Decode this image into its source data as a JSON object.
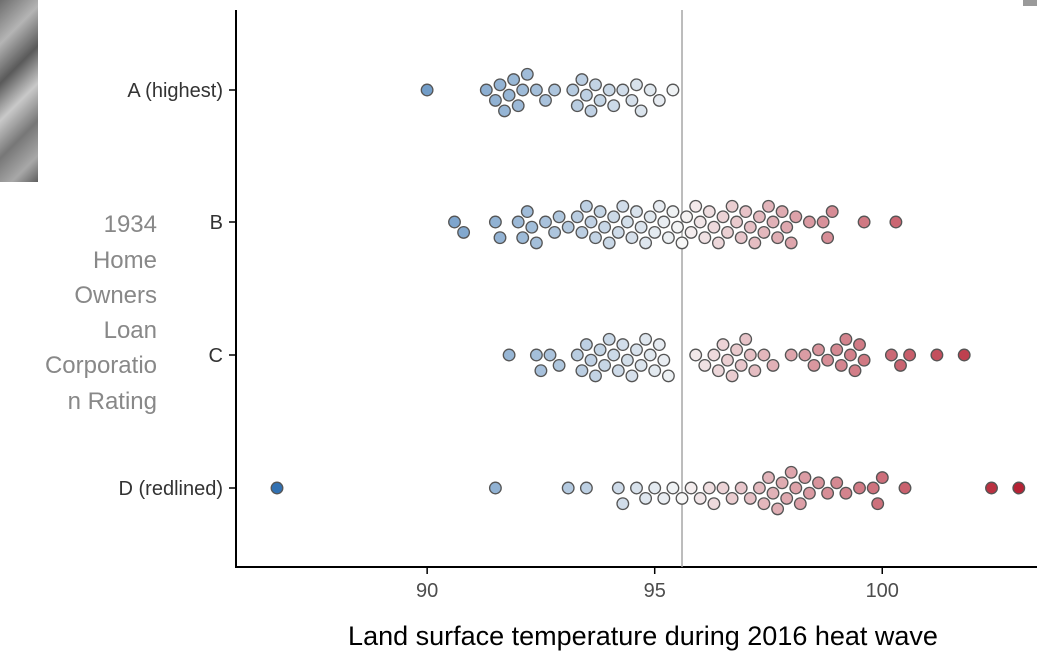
{
  "chart_data": {
    "type": "scatter",
    "subtype": "beeswarm",
    "title": "",
    "xlabel": "Land surface temperature during 2016 heat wave",
    "ylabel_lines": [
      "1934",
      "Home",
      "Owners",
      "Loan",
      "Corporatio",
      "n Rating"
    ],
    "xlim": [
      85.8,
      103.4
    ],
    "xticks": [
      90,
      95,
      100
    ],
    "reference_line_x": 95.6,
    "categories": [
      "A (highest)",
      "B",
      "C",
      "D (redlined)"
    ],
    "color_scale": {
      "low": "#2166ac",
      "mid": "#f7f7f7",
      "high": "#b2182b",
      "mid_value": 95.6
    },
    "grid": false,
    "legend": "none",
    "series": [
      {
        "category": "A (highest)",
        "values": [
          90.0,
          91.3,
          91.5,
          91.6,
          91.7,
          91.8,
          91.9,
          92.0,
          92.1,
          92.2,
          92.4,
          92.6,
          92.8,
          93.2,
          93.3,
          93.4,
          93.5,
          93.6,
          93.7,
          93.8,
          94.0,
          94.1,
          94.3,
          94.5,
          94.6,
          94.7,
          94.9,
          95.1,
          95.4
        ]
      },
      {
        "category": "B",
        "values": [
          90.6,
          90.8,
          91.5,
          91.6,
          92.0,
          92.1,
          92.2,
          92.3,
          92.4,
          92.6,
          92.8,
          92.9,
          93.1,
          93.3,
          93.4,
          93.5,
          93.6,
          93.7,
          93.8,
          93.9,
          94.0,
          94.1,
          94.2,
          94.3,
          94.4,
          94.5,
          94.6,
          94.7,
          94.8,
          94.9,
          95.0,
          95.1,
          95.2,
          95.3,
          95.4,
          95.5,
          95.6,
          95.7,
          95.8,
          95.9,
          96.0,
          96.1,
          96.2,
          96.3,
          96.4,
          96.5,
          96.6,
          96.7,
          96.8,
          96.9,
          97.0,
          97.1,
          97.2,
          97.3,
          97.4,
          97.5,
          97.6,
          97.7,
          97.8,
          97.9,
          98.0,
          98.1,
          98.4,
          98.7,
          98.8,
          98.9,
          99.6,
          100.3
        ]
      },
      {
        "category": "C",
        "values": [
          91.8,
          92.4,
          92.5,
          92.7,
          92.9,
          93.3,
          93.4,
          93.5,
          93.6,
          93.7,
          93.8,
          93.9,
          94.0,
          94.1,
          94.2,
          94.3,
          94.4,
          94.5,
          94.6,
          94.7,
          94.8,
          94.9,
          95.0,
          95.1,
          95.2,
          95.3,
          95.9,
          96.1,
          96.3,
          96.4,
          96.5,
          96.6,
          96.7,
          96.8,
          96.9,
          97.0,
          97.1,
          97.2,
          97.4,
          97.6,
          98.0,
          98.3,
          98.5,
          98.6,
          98.8,
          99.0,
          99.1,
          99.2,
          99.3,
          99.4,
          99.5,
          99.6,
          100.2,
          100.4,
          100.6,
          101.2,
          101.8
        ]
      },
      {
        "category": "D (redlined)",
        "values": [
          86.7,
          91.5,
          93.1,
          93.5,
          94.2,
          94.3,
          94.6,
          94.8,
          95.0,
          95.2,
          95.4,
          95.6,
          95.8,
          96.0,
          96.2,
          96.3,
          96.5,
          96.7,
          96.9,
          97.1,
          97.3,
          97.4,
          97.5,
          97.6,
          97.7,
          97.8,
          97.9,
          98.0,
          98.1,
          98.2,
          98.3,
          98.4,
          98.6,
          98.8,
          99.0,
          99.2,
          99.5,
          99.8,
          99.9,
          100.0,
          100.5,
          102.4,
          103.0
        ]
      }
    ]
  }
}
